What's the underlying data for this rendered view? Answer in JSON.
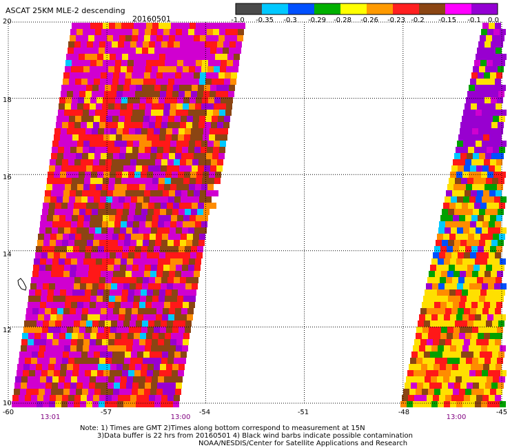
{
  "header": {
    "title": "ASCAT 25KM MLE-2 descending",
    "date": "20160501"
  },
  "colorbar": {
    "colors": [
      "#4a4a4a",
      "#00c8ff",
      "#0050ff",
      "#00b000",
      "#ffff00",
      "#ff9a00",
      "#ff2020",
      "#8b4513",
      "#ff00ff",
      "#9400d3"
    ],
    "labels": [
      "-1.0",
      "-0.35",
      "-0.3",
      "-0.29",
      "-0.28",
      "-0.26",
      "-0.23",
      "-0.2",
      "-0.15",
      "-0.1",
      "0.0"
    ]
  },
  "map": {
    "lat_range": [
      10,
      20
    ],
    "lon_range": [
      -60,
      -45
    ],
    "lat_ticks": [
      "10",
      "12",
      "14",
      "16",
      "18",
      "20"
    ],
    "lon_ticks": [
      "-60",
      "-57",
      "-54",
      "-51",
      "-48",
      "-45"
    ],
    "time_labels": [
      {
        "text": "13:01",
        "lon": -58.6
      },
      {
        "text": "13:00",
        "lon": -55.8
      },
      {
        "text": "13:00",
        "lon": -46.6
      }
    ],
    "grid": true,
    "grid_style": "dotted",
    "swaths": [
      {
        "name": "western swath",
        "time": "13:01"
      },
      {
        "name": "eastern swath",
        "time": "13:00"
      }
    ]
  },
  "notes": {
    "line1": "Note: 1) Times are GMT 2)Times along bottom correspond to measurement at 15N",
    "line2": "3)Data buffer is 22 hrs from 20160501 4) Black wind barbs indicate possible contamination",
    "line3": "NOAA/NESDIS/Center for Satellite Applications and Research"
  }
}
